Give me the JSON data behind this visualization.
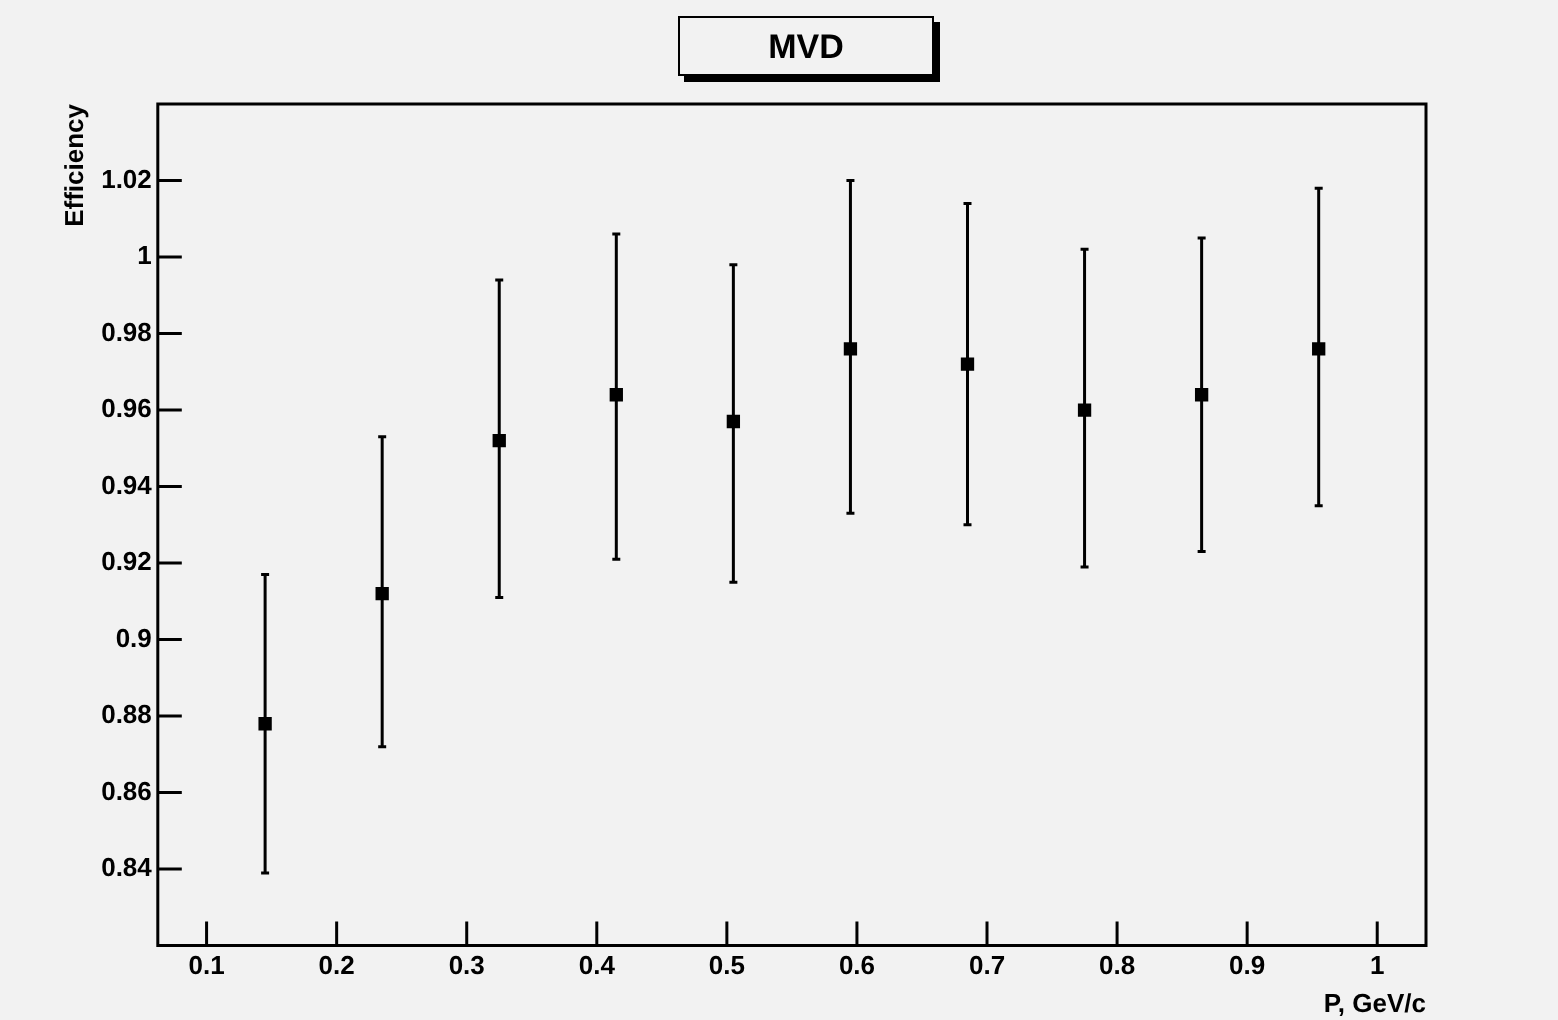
{
  "chart_data": {
    "type": "scatter",
    "title": "MVD",
    "xlabel": "P, GeV/c",
    "ylabel": "Efficiency",
    "x": [
      0.145,
      0.235,
      0.325,
      0.415,
      0.505,
      0.595,
      0.685,
      0.775,
      0.865,
      0.955
    ],
    "series": [
      {
        "color": "#000000",
        "values": [
          0.878,
          0.912,
          0.952,
          0.964,
          0.957,
          0.976,
          0.972,
          0.96,
          0.964,
          0.976
        ],
        "errors": [
          [
            0.839,
            0.917
          ],
          [
            0.872,
            0.953
          ],
          [
            0.911,
            0.994
          ],
          [
            0.921,
            1.006
          ],
          [
            0.915,
            0.998
          ],
          [
            0.933,
            1.02
          ],
          [
            0.93,
            1.014
          ],
          [
            0.919,
            1.002
          ],
          [
            0.923,
            1.005
          ],
          [
            0.935,
            1.018
          ]
        ]
      }
    ],
    "xlim": [
      0.0625,
      1.0375
    ],
    "xticks": [
      0.1,
      0.2,
      0.3,
      0.4,
      0.5,
      0.6,
      0.7,
      0.8,
      0.9,
      1
    ],
    "ylim": [
      0.82,
      1.04
    ],
    "yticks": [
      0.84,
      0.86,
      0.88,
      0.9,
      0.92,
      0.94,
      0.96,
      0.98,
      1,
      1.02
    ],
    "grid": false,
    "legend": false,
    "marker": "square"
  }
}
